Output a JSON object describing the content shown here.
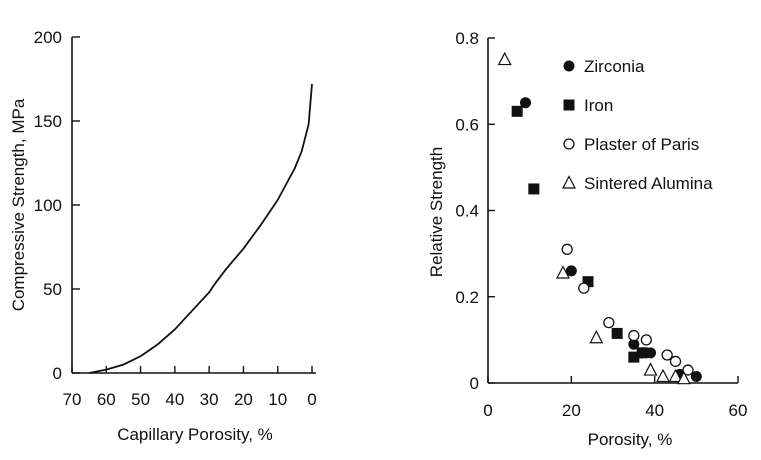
{
  "chart_data": [
    {
      "type": "line",
      "title": "",
      "xlabel": "Capillary Porosity, %",
      "ylabel": "Compressive Strength, MPa",
      "xlim": [
        70,
        0
      ],
      "ylim": [
        0,
        200
      ],
      "x_reversed": true,
      "xticks": [
        70,
        60,
        50,
        40,
        30,
        20,
        10,
        0
      ],
      "yticks": [
        0,
        50,
        100,
        150,
        200
      ],
      "grid": false,
      "series": [
        {
          "name": "Compressive Strength",
          "x": [
            65,
            60,
            55,
            50,
            45,
            40,
            35,
            30,
            28,
            25,
            20,
            15,
            10,
            5,
            3,
            1,
            0
          ],
          "y": [
            0,
            2,
            5,
            10,
            17,
            26,
            37,
            48,
            54,
            62,
            74,
            88,
            103,
            122,
            132,
            148,
            172
          ]
        }
      ]
    },
    {
      "type": "scatter",
      "title": "",
      "xlabel": "Porosity, %",
      "ylabel": "Relative Strength",
      "xlim": [
        0,
        60
      ],
      "ylim": [
        0,
        0.8
      ],
      "xticks": [
        0,
        20,
        40,
        60
      ],
      "yticks": [
        0,
        0.2,
        0.4,
        0.6,
        0.8
      ],
      "grid": false,
      "legend_position": "top-right",
      "series": [
        {
          "name": "Zirconia",
          "marker": "filled-circle",
          "points": [
            [
              9,
              0.65
            ],
            [
              20,
              0.26
            ],
            [
              35,
              0.09
            ],
            [
              37,
              0.07
            ],
            [
              39,
              0.07
            ],
            [
              46,
              0.02
            ],
            [
              50,
              0.015
            ]
          ]
        },
        {
          "name": "Iron",
          "marker": "filled-square",
          "points": [
            [
              7,
              0.63
            ],
            [
              11,
              0.45
            ],
            [
              24,
              0.235
            ],
            [
              31,
              0.115
            ],
            [
              35,
              0.06
            ],
            [
              37,
              0.07
            ]
          ]
        },
        {
          "name": "Plaster of Paris",
          "marker": "open-circle",
          "points": [
            [
              19,
              0.31
            ],
            [
              23,
              0.22
            ],
            [
              29,
              0.14
            ],
            [
              35,
              0.11
            ],
            [
              38,
              0.1
            ],
            [
              43,
              0.065
            ],
            [
              45,
              0.05
            ],
            [
              48,
              0.03
            ]
          ]
        },
        {
          "name": "Sintered Alumina",
          "marker": "open-triangle",
          "points": [
            [
              4,
              0.75
            ],
            [
              18,
              0.255
            ],
            [
              26,
              0.105
            ],
            [
              39,
              0.03
            ],
            [
              42,
              0.015
            ],
            [
              45,
              0.015
            ],
            [
              47,
              0.01
            ]
          ]
        }
      ]
    }
  ]
}
